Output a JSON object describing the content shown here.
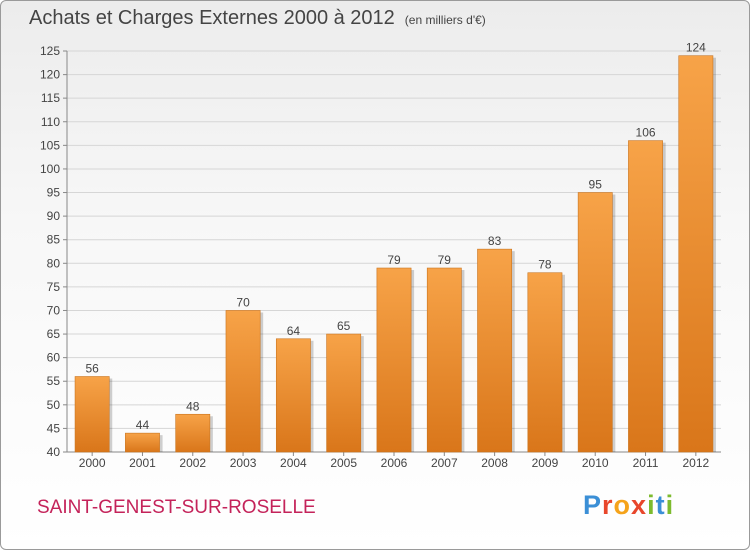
{
  "chart_data": {
    "type": "bar",
    "title": "Achats et Charges Externes 2000 à 2012",
    "subtitle": "(en milliers d'€)",
    "categories": [
      "2000",
      "2001",
      "2002",
      "2003",
      "2004",
      "2005",
      "2006",
      "2007",
      "2008",
      "2009",
      "2010",
      "2011",
      "2012"
    ],
    "values": [
      56,
      44,
      48,
      70,
      64,
      65,
      79,
      79,
      83,
      78,
      95,
      106,
      124
    ],
    "ylim": [
      40,
      125
    ],
    "yticks": [
      40,
      45,
      50,
      55,
      60,
      65,
      70,
      75,
      80,
      85,
      90,
      95,
      100,
      105,
      110,
      115,
      120,
      125
    ],
    "grid": true,
    "bar_color": "#f0962e",
    "bar_color_dark": "#d9761a"
  },
  "footer": {
    "city": "SAINT-GENEST-SUR-ROSELLE",
    "logo_letters": [
      "P",
      "r",
      "o",
      "x",
      "i",
      "t",
      "i"
    ],
    "logo_colors": [
      "#3b8fd6",
      "#e8462b",
      "#f5a31a",
      "#e8462b",
      "#7dbb2e",
      "#3b8fd6",
      "#7dbb2e"
    ]
  }
}
